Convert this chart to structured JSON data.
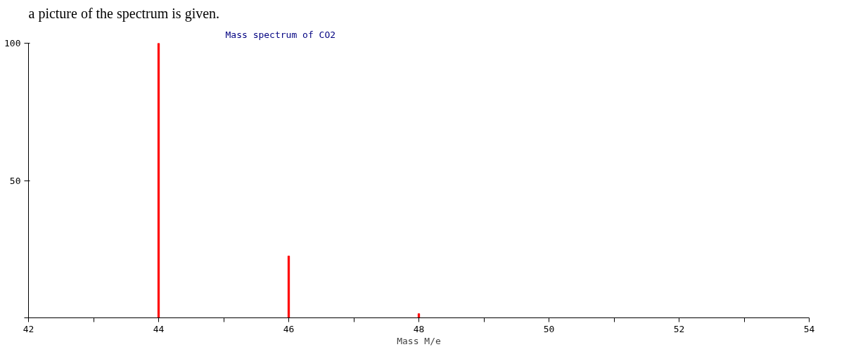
{
  "chart_data": {
    "type": "bar",
    "title": "Mass spectrum of CO2",
    "xlabel": "Mass M/e",
    "annotations": [
      "a picture of the spectrum is given."
    ],
    "x": [
      44,
      46,
      48
    ],
    "values": [
      100,
      22.5,
      1.5
    ],
    "color": "#ff0000",
    "xlim": [
      42,
      54
    ],
    "xticks": [
      42,
      {
        "value": 43,
        "label": null
      },
      44,
      {
        "value": 45,
        "label": null
      },
      46,
      {
        "value": 47,
        "label": null
      },
      48,
      {
        "value": 49,
        "label": null
      },
      50,
      {
        "value": 51,
        "label": null
      },
      52,
      {
        "value": 53,
        "label": null
      },
      54
    ],
    "ylim": [
      0,
      100
    ],
    "yticks": [
      {
        "value": 0,
        "label": null
      },
      50,
      100
    ],
    "grid": false
  }
}
